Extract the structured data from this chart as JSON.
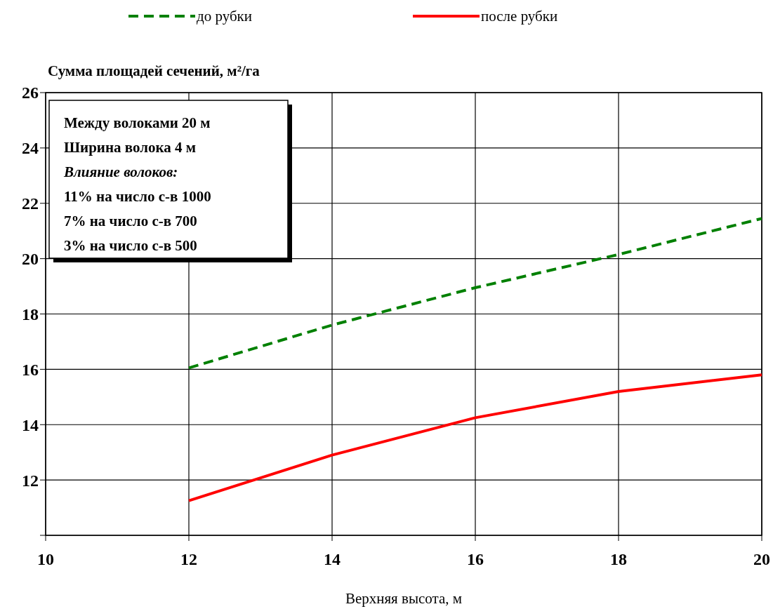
{
  "chart_data": {
    "type": "line",
    "ylabel": "Сумма площадей сечений, м²/га",
    "xlabel": "Верхняя высота, м",
    "x": [
      12,
      14,
      16,
      18,
      20
    ],
    "series": [
      {
        "name": "до рубки",
        "color": "#008000",
        "line_style": "dashed",
        "values": [
          16.05,
          17.6,
          18.95,
          20.15,
          21.45
        ]
      },
      {
        "name": "после рубки",
        "color": "#ff0000",
        "line_style": "solid",
        "values": [
          11.25,
          12.9,
          14.25,
          15.2,
          15.8
        ]
      }
    ],
    "xlim": [
      10,
      20
    ],
    "xticks": [
      10,
      12,
      14,
      16,
      18,
      20
    ],
    "ylim": [
      10,
      26
    ],
    "yticks": [
      {
        "value": 10,
        "label": null
      },
      12,
      14,
      16,
      18,
      20,
      22,
      24,
      26
    ],
    "grid": true,
    "legend": "top",
    "marker": "none",
    "annotations": [
      "Между волоками 20 м",
      "Ширина волока 4 м",
      "Влияние волоков:",
      "11% на число с-в 1000",
      "7% на число с-в 700",
      "3% на число с-в 500"
    ]
  }
}
